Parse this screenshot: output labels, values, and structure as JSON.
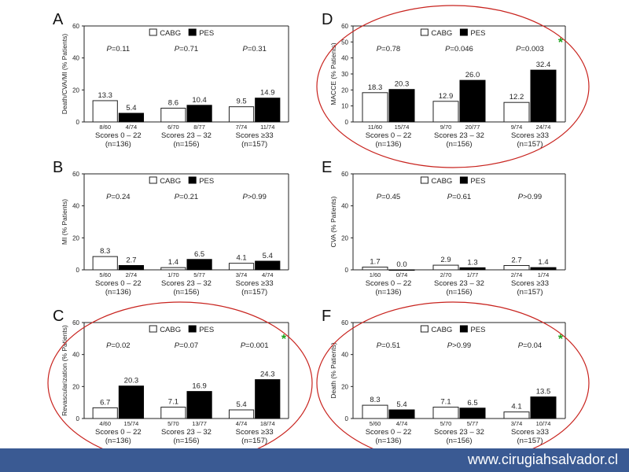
{
  "footer": {
    "url": "www.cirugiahsalvador.cl"
  },
  "legend": {
    "open_label": "CABG",
    "filled_label": "PES"
  },
  "chart_data": [
    {
      "panel": "A",
      "type": "bar",
      "ylabel": "Death/CVA/MI (% Patients)",
      "ylim": [
        0,
        60
      ],
      "yticks": [
        "0",
        "20",
        "40",
        "60"
      ],
      "groups": [
        {
          "label": "Scores 0 – 22",
          "n": "(n=136)",
          "p": "=0.11",
          "cabg": 13.3,
          "pes": 5.4,
          "cabg_label": "13.3",
          "pes_label": "5.4",
          "cabg_frac": "8/60",
          "pes_frac": "4/74"
        },
        {
          "label": "Scores 23 – 32",
          "n": "(n=156)",
          "p": "=0.71",
          "cabg": 8.6,
          "pes": 10.4,
          "cabg_label": "8.6",
          "pes_label": "10.4",
          "cabg_frac": "6/70",
          "pes_frac": "8/77"
        },
        {
          "label": "Scores ≥33",
          "n": "(n=157)",
          "p": "=0.31",
          "cabg": 9.5,
          "pes": 14.9,
          "cabg_label": "9.5",
          "pes_label": "14.9",
          "cabg_frac": "7/74",
          "pes_frac": "11/74"
        }
      ],
      "circled": false,
      "star": false
    },
    {
      "panel": "D",
      "type": "bar",
      "ylabel": "MACCE (% Patients)",
      "ylim": [
        0,
        60
      ],
      "yticks": [
        "0",
        "10",
        "20",
        "30",
        "40",
        "50",
        "60"
      ],
      "groups": [
        {
          "label": "Scores 0 – 22",
          "n": "(n=136)",
          "p": "=0.78",
          "cabg": 18.3,
          "pes": 20.3,
          "cabg_label": "18.3",
          "pes_label": "20.3",
          "cabg_frac": "11/60",
          "pes_frac": "15/74"
        },
        {
          "label": "Scores 23 – 32",
          "n": "(n=156)",
          "p": "=0.046",
          "cabg": 12.9,
          "pes": 26.0,
          "cabg_label": "12.9",
          "pes_label": "26.0",
          "cabg_frac": "9/70",
          "pes_frac": "20/77"
        },
        {
          "label": "Scores ≥33",
          "n": "(n=157)",
          "p": "=0.003",
          "cabg": 12.2,
          "pes": 32.4,
          "cabg_label": "12.2",
          "pes_label": "32.4",
          "cabg_frac": "9/74",
          "pes_frac": "24/74"
        }
      ],
      "circled": true,
      "star": true
    },
    {
      "panel": "B",
      "type": "bar",
      "ylabel": "MI (% Patients)",
      "ylim": [
        0,
        60
      ],
      "yticks": [
        "0",
        "20",
        "40",
        "60"
      ],
      "groups": [
        {
          "label": "Scores 0 – 22",
          "n": "(n=136)",
          "p": "=0.24",
          "cabg": 8.3,
          "pes": 2.7,
          "cabg_label": "8.3",
          "pes_label": "2.7",
          "cabg_frac": "5/60",
          "pes_frac": "2/74"
        },
        {
          "label": "Scores 23 – 32",
          "n": "(n=156)",
          "p": "=0.21",
          "cabg": 1.4,
          "pes": 6.5,
          "cabg_label": "1.4",
          "pes_label": "6.5",
          "cabg_frac": "1/70",
          "pes_frac": "5/77"
        },
        {
          "label": "Scores ≥33",
          "n": "(n=157)",
          "p": ">0.99",
          "cabg": 4.1,
          "pes": 5.4,
          "cabg_label": "4.1",
          "pes_label": "5.4",
          "cabg_frac": "3/74",
          "pes_frac": "4/74"
        }
      ],
      "circled": false,
      "star": false
    },
    {
      "panel": "E",
      "type": "bar",
      "ylabel": "CVA (% Patients)",
      "ylim": [
        0,
        60
      ],
      "yticks": [
        "0",
        "20",
        "40",
        "60"
      ],
      "groups": [
        {
          "label": "Scores 0 – 22",
          "n": "(n=136)",
          "p": "=0.45",
          "cabg": 1.7,
          "pes": 0.0,
          "cabg_label": "1.7",
          "pes_label": "0.0",
          "cabg_frac": "1/60",
          "pes_frac": "0/74"
        },
        {
          "label": "Scores 23 – 32",
          "n": "(n=156)",
          "p": "=0.61",
          "cabg": 2.9,
          "pes": 1.3,
          "cabg_label": "2.9",
          "pes_label": "1.3",
          "cabg_frac": "2/70",
          "pes_frac": "1/77"
        },
        {
          "label": "Scores ≥33",
          "n": "(n=157)",
          "p": ">0.99",
          "cabg": 2.7,
          "pes": 1.4,
          "cabg_label": "2.7",
          "pes_label": "1.4",
          "cabg_frac": "2/74",
          "pes_frac": "1/74"
        }
      ],
      "circled": false,
      "star": false
    },
    {
      "panel": "C",
      "type": "bar",
      "ylabel": "Revascularization (% Patients)",
      "ylim": [
        0,
        60
      ],
      "yticks": [
        "0",
        "20",
        "40",
        "60"
      ],
      "groups": [
        {
          "label": "Scores 0 – 22",
          "n": "(n=136)",
          "p": "=0.02",
          "cabg": 6.7,
          "pes": 20.3,
          "cabg_label": "6.7",
          "pes_label": "20.3",
          "cabg_frac": "4/60",
          "pes_frac": "15/74"
        },
        {
          "label": "Scores 23 – 32",
          "n": "(n=156)",
          "p": "=0.07",
          "cabg": 7.1,
          "pes": 16.9,
          "cabg_label": "7.1",
          "pes_label": "16.9",
          "cabg_frac": "5/70",
          "pes_frac": "13/77"
        },
        {
          "label": "Scores ≥33",
          "n": "(n=157)",
          "p": "=0.001",
          "cabg": 5.4,
          "pes": 24.3,
          "cabg_label": "5.4",
          "pes_label": "24.3",
          "cabg_frac": "4/74",
          "pes_frac": "18/74"
        }
      ],
      "circled": true,
      "star": true
    },
    {
      "panel": "F",
      "type": "bar",
      "ylabel": "Death (% Patients)",
      "ylim": [
        0,
        60
      ],
      "yticks": [
        "0",
        "20",
        "40",
        "60"
      ],
      "groups": [
        {
          "label": "Scores 0 – 22",
          "n": "(n=136)",
          "p": "=0.51",
          "cabg": 8.3,
          "pes": 5.4,
          "cabg_label": "8.3",
          "pes_label": "5.4",
          "cabg_frac": "5/60",
          "pes_frac": "4/74"
        },
        {
          "label": "Scores 23 – 32",
          "n": "(n=156)",
          "p": ">0.99",
          "cabg": 7.1,
          "pes": 6.5,
          "cabg_label": "7.1",
          "pes_label": "6.5",
          "cabg_frac": "5/70",
          "pes_frac": "5/77"
        },
        {
          "label": "Scores ≥33",
          "n": "(n=157)",
          "p": "=0.04",
          "cabg": 4.1,
          "pes": 13.5,
          "cabg_label": "4.1",
          "pes_label": "13.5",
          "cabg_frac": "3/74",
          "pes_frac": "10/74"
        }
      ],
      "circled": true,
      "star": true
    }
  ]
}
